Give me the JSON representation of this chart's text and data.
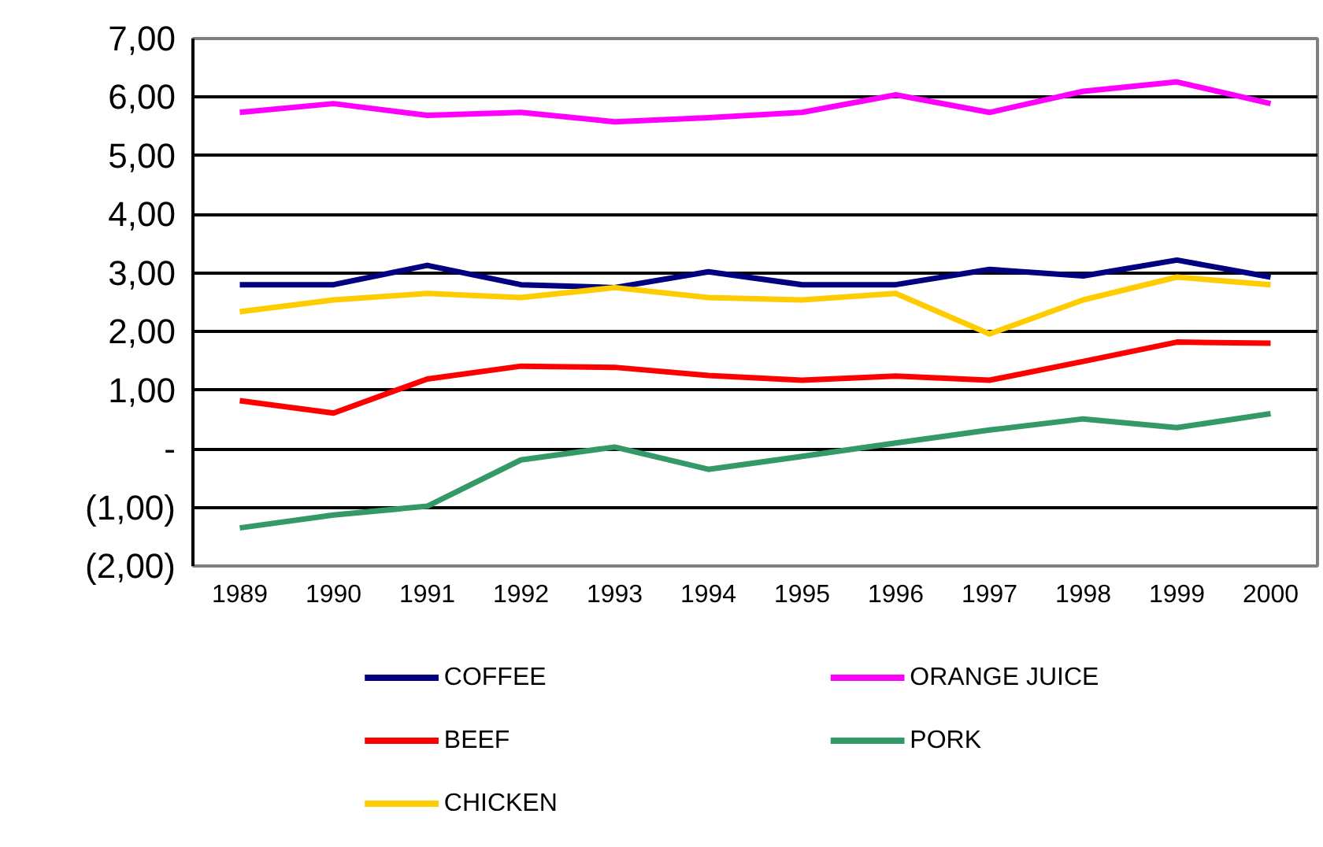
{
  "chart_data": {
    "type": "line",
    "categories": [
      "1989",
      "1990",
      "1991",
      "1992",
      "1993",
      "1994",
      "1995",
      "1996",
      "1997",
      "1998",
      "1999",
      "2000"
    ],
    "series": [
      {
        "name": "COFFEE",
        "color": "#000080",
        "values": [
          2.8,
          2.8,
          3.13,
          2.8,
          2.75,
          3.02,
          2.8,
          2.8,
          3.06,
          2.95,
          3.22,
          2.93
        ]
      },
      {
        "name": "ORANGE JUICE",
        "color": "#ff00ff",
        "values": [
          5.74,
          5.89,
          5.69,
          5.74,
          5.58,
          5.65,
          5.74,
          6.04,
          5.74,
          6.1,
          6.26,
          5.89
        ]
      },
      {
        "name": "BEEF",
        "color": "#ff0000",
        "values": [
          0.82,
          0.61,
          1.19,
          1.41,
          1.39,
          1.25,
          1.17,
          1.24,
          1.17,
          1.49,
          1.82,
          1.8
        ]
      },
      {
        "name": "PORK",
        "color": "#339966",
        "values": [
          -1.35,
          -1.13,
          -0.98,
          -0.19,
          0.03,
          -0.35,
          -0.13,
          0.1,
          0.32,
          0.51,
          0.36,
          0.6
        ]
      },
      {
        "name": "CHICKEN",
        "color": "#ffcc00",
        "values": [
          2.34,
          2.54,
          2.65,
          2.58,
          2.75,
          2.58,
          2.54,
          2.65,
          1.96,
          2.54,
          2.93,
          2.8
        ]
      }
    ],
    "ylim": [
      -2,
      7
    ],
    "yticks": [
      {
        "value": 7,
        "label": "7,00"
      },
      {
        "value": 6,
        "label": "6,00"
      },
      {
        "value": 5,
        "label": "5,00"
      },
      {
        "value": 4,
        "label": "4,00"
      },
      {
        "value": 3,
        "label": "3,00"
      },
      {
        "value": 2,
        "label": "2,00"
      },
      {
        "value": 1,
        "label": "1,00"
      },
      {
        "value": 0,
        "label": "-"
      },
      {
        "value": -1,
        "label": "(1,00)"
      },
      {
        "value": -2,
        "label": "(2,00)"
      }
    ],
    "grid": "y",
    "legend": "bottom",
    "marker": "none",
    "line_style": "solid"
  }
}
